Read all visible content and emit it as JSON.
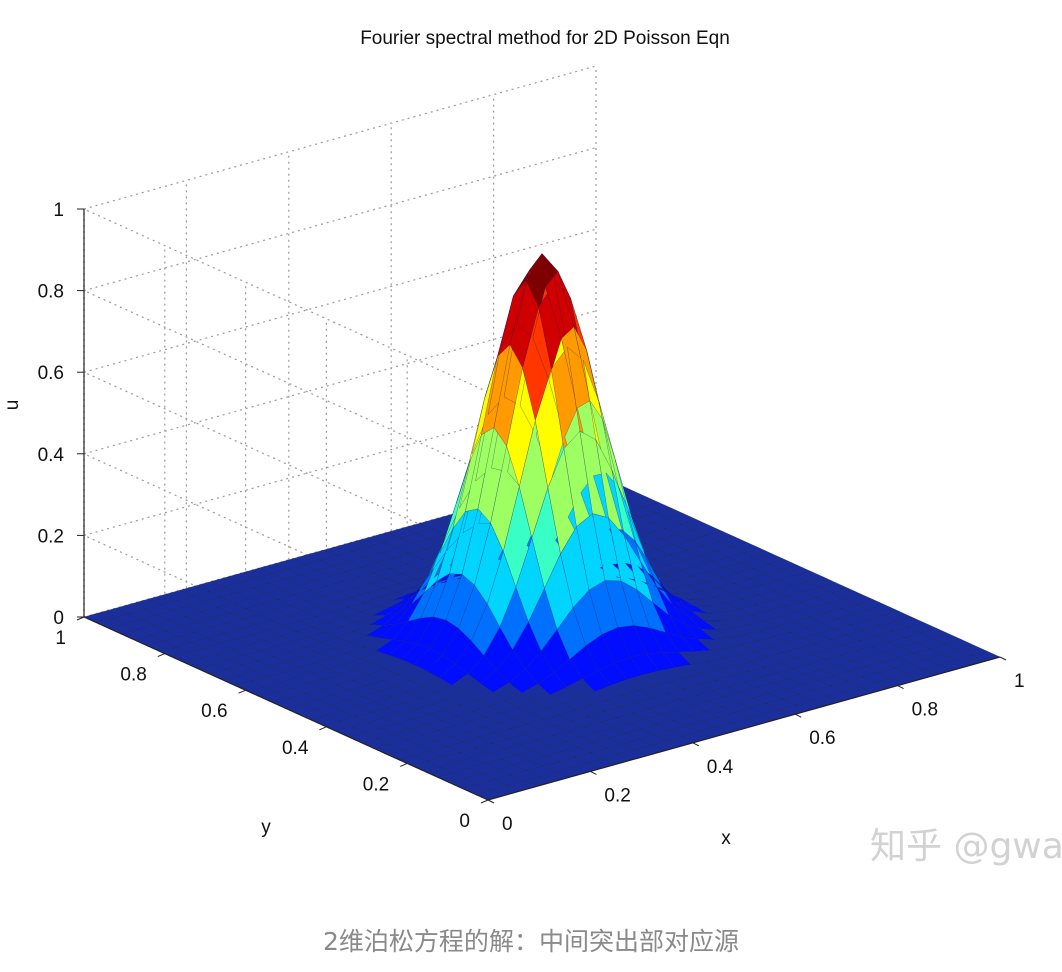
{
  "chart_data": {
    "type": "surface",
    "title": "Fourier spectral method for 2D Poisson Eqn",
    "xlabel": "x",
    "ylabel": "y",
    "zlabel": "u",
    "xlim": [
      0,
      1
    ],
    "ylim": [
      0,
      1
    ],
    "zlim": [
      0,
      1
    ],
    "x_ticks": [
      "0",
      "0.2",
      "0.4",
      "0.6",
      "0.8",
      "1"
    ],
    "y_ticks": [
      "0",
      "0.2",
      "0.4",
      "0.6",
      "0.8",
      "1"
    ],
    "z_ticks": [
      "0",
      "0.2",
      "0.4",
      "0.6",
      "0.8",
      "1"
    ],
    "grid": true,
    "colormap": "jet",
    "surface": {
      "description_of_shape": "single gaussian-like peak",
      "peak_x": 0.5,
      "peak_y": 0.5,
      "peak_u": 0.94,
      "width_sigma": 0.09,
      "grid_n": 33
    }
  },
  "watermark": "知乎 @gwa",
  "caption": "2维泊松方程的解：中间突出部对应源",
  "colors": {
    "background": "#ffffff",
    "caption": "#8a8a8a",
    "grid": "#9a9a9a",
    "base_surface": "#1a2f9b"
  }
}
